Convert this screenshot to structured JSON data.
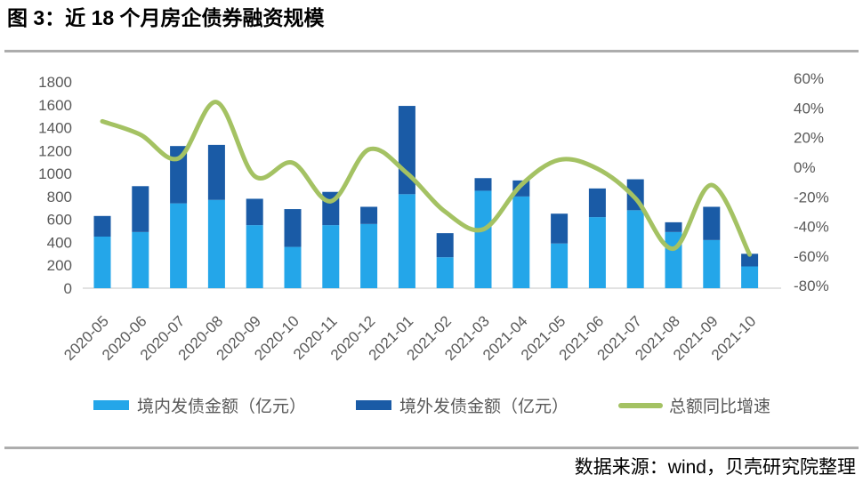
{
  "title": "图 3：近 18 个月房企债券融资规模",
  "source_note": "数据来源：wind，贝壳研究院整理",
  "colors": {
    "domestic": "#24A6E9",
    "overseas": "#1A5BA6",
    "growth": "#A4C263",
    "axis_text": "#595959",
    "baseline": "#D9D9D9",
    "divider": "#ADADAD"
  },
  "chart_data": {
    "type": "combo-stacked-bar-line",
    "categories": [
      "2020-05",
      "2020-06",
      "2020-07",
      "2020-08",
      "2020-09",
      "2020-10",
      "2020-11",
      "2020-12",
      "2021-01",
      "2021-02",
      "2021-03",
      "2021-04",
      "2021-05",
      "2021-06",
      "2021-07",
      "2021-08",
      "2021-09",
      "2021-10"
    ],
    "series": [
      {
        "name": "境内发债金额（亿元）",
        "type": "bar",
        "stack": "amount",
        "color_key": "domestic",
        "values": [
          450,
          490,
          740,
          770,
          550,
          360,
          550,
          560,
          820,
          270,
          850,
          800,
          390,
          620,
          680,
          490,
          420,
          190
        ]
      },
      {
        "name": "境外发债金额（亿元）",
        "type": "bar",
        "stack": "amount",
        "color_key": "overseas",
        "values": [
          180,
          400,
          500,
          480,
          230,
          330,
          290,
          150,
          770,
          210,
          110,
          140,
          260,
          250,
          270,
          85,
          290,
          110
        ]
      },
      {
        "name": "总额同比增速",
        "type": "line",
        "axis": "right",
        "unit": "%",
        "color_key": "growth",
        "values": [
          31,
          22,
          6,
          44,
          -6,
          3,
          -23,
          12,
          -4,
          -30,
          -42,
          -12,
          5,
          -1,
          -21,
          -55,
          -12,
          -59
        ]
      }
    ],
    "left_axis": {
      "min": 0,
      "max": 1800,
      "step": 200,
      "tick_labels": [
        "1800",
        "1600",
        "1400",
        "1200",
        "1000",
        "800",
        "600",
        "400",
        "200",
        "0"
      ]
    },
    "right_axis": {
      "min": -80,
      "max": 60,
      "step": 20,
      "tick_labels": [
        "60%",
        "40%",
        "20%",
        "0%",
        "-20%",
        "-40%",
        "-60%",
        "-80%"
      ]
    },
    "legend_position": "bottom",
    "grid": false,
    "smooth_line": true
  }
}
